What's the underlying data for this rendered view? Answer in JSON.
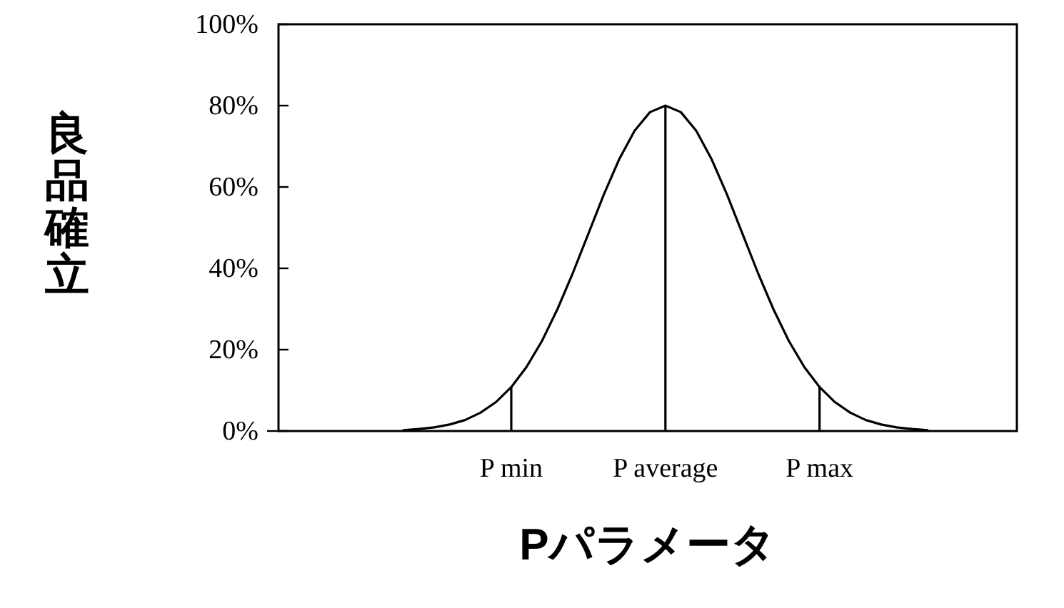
{
  "chart_data": {
    "type": "line",
    "xlabel": "Pパラメータ",
    "ylabel": "良品確立",
    "categories": [
      null,
      null,
      null,
      null,
      null,
      null,
      null,
      "P min",
      null,
      null,
      null,
      null,
      null,
      null,
      null,
      null,
      null,
      "P average",
      null,
      null,
      null,
      null,
      null,
      null,
      null,
      null,
      null,
      "P max",
      null,
      null,
      null,
      null,
      null,
      null,
      null
    ],
    "ylim": [
      0,
      100
    ],
    "yticks": [
      {
        "value": 0,
        "label": "0%"
      },
      {
        "value": 20,
        "label": "20%"
      },
      {
        "value": 40,
        "label": "40%"
      },
      {
        "value": 60,
        "label": "60%"
      },
      {
        "value": 80,
        "label": "80%"
      },
      {
        "value": 100,
        "label": "100%"
      }
    ],
    "series": [
      {
        "color": "#000000",
        "values": [
          0.2,
          0.5,
          0.9,
          1.6,
          2.7,
          4.5,
          7.1,
          10.8,
          15.8,
          22.2,
          30.0,
          38.9,
          48.5,
          58.1,
          66.8,
          73.8,
          78.4,
          80,
          78.4,
          73.8,
          66.8,
          58.1,
          48.5,
          38.9,
          30.0,
          22.2,
          15.8,
          10.8,
          7.1,
          4.5,
          2.7,
          1.6,
          0.9,
          0.5,
          0.2
        ]
      },
      {
        "type": "bar",
        "color": "#000000",
        "values": [
          null,
          null,
          null,
          null,
          null,
          null,
          null,
          10.8,
          null,
          null,
          null,
          null,
          null,
          null,
          null,
          null,
          null,
          80,
          null,
          null,
          null,
          null,
          null,
          null,
          null,
          null,
          null,
          10.8,
          null,
          null,
          null,
          null,
          null,
          null,
          null
        ]
      }
    ]
  }
}
